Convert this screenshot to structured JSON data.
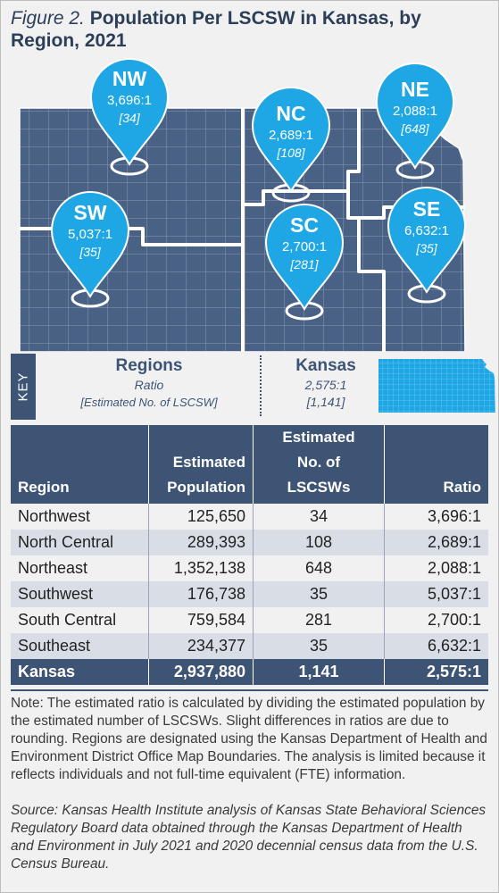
{
  "title": {
    "figure_label": "Figure 2.",
    "text": "Population Per LSCSW in Kansas, by Region, 2021"
  },
  "colors": {
    "region": "#4a6186",
    "pin": "#1ea7e4",
    "header": "#3e5475",
    "alt_row": "#d8dde6"
  },
  "pins": [
    {
      "code": "NW",
      "ratio": "3,696:1",
      "count": "[34]"
    },
    {
      "code": "NC",
      "ratio": "2,689:1",
      "count": "[108]"
    },
    {
      "code": "NE",
      "ratio": "2,088:1",
      "count": "[648]"
    },
    {
      "code": "SW",
      "ratio": "5,037:1",
      "count": "[35]"
    },
    {
      "code": "SC",
      "ratio": "2,700:1",
      "count": "[281]"
    },
    {
      "code": "SE",
      "ratio": "6,632:1",
      "count": "[35]"
    }
  ],
  "key": {
    "tab": "KEY",
    "regions_heading": "Regions",
    "regions_ratio": "Ratio",
    "regions_count": "[Estimated No. of LSCSW]",
    "kansas_heading": "Kansas",
    "kansas_ratio": "2,575:1",
    "kansas_count": "[1,141]"
  },
  "table": {
    "headers": {
      "region": "Region",
      "population_1": "Estimated",
      "population_2": "Population",
      "lscsws_1": "Estimated",
      "lscsws_2": "No. of",
      "lscsws_3": "LSCSWs",
      "ratio": "Ratio"
    },
    "rows": [
      {
        "region": "Northwest",
        "population": "125,650",
        "lscsws": "34",
        "ratio": "3,696:1"
      },
      {
        "region": "North Central",
        "population": "289,393",
        "lscsws": "108",
        "ratio": "2,689:1"
      },
      {
        "region": "Northeast",
        "population": "1,352,138",
        "lscsws": "648",
        "ratio": "2,088:1"
      },
      {
        "region": "Southwest",
        "population": "176,738",
        "lscsws": "35",
        "ratio": "5,037:1"
      },
      {
        "region": "South Central",
        "population": "759,584",
        "lscsws": "281",
        "ratio": "2,700:1"
      },
      {
        "region": "Southeast",
        "population": "234,377",
        "lscsws": "35",
        "ratio": "6,632:1"
      }
    ],
    "total": {
      "region": "Kansas",
      "population": "2,937,880",
      "lscsws": "1,141",
      "ratio": "2,575:1"
    }
  },
  "note": "Note: The estimated ratio is calculated by dividing the estimated population by the estimated number of LSCSWs. Slight differences in ratios are due to rounding. Regions are designated using the Kansas Department of Health and Environment District Office Map Boundaries. The analysis is limited because it reflects individuals and not full-time equivalent (FTE) information.",
  "source": "Source: Kansas Health Institute analysis of Kansas State Behavioral Sciences Regulatory Board data obtained through the Kansas Department of Health and Environment in July 2021 and 2020 decennial census data from the U.S. Census Bureau."
}
